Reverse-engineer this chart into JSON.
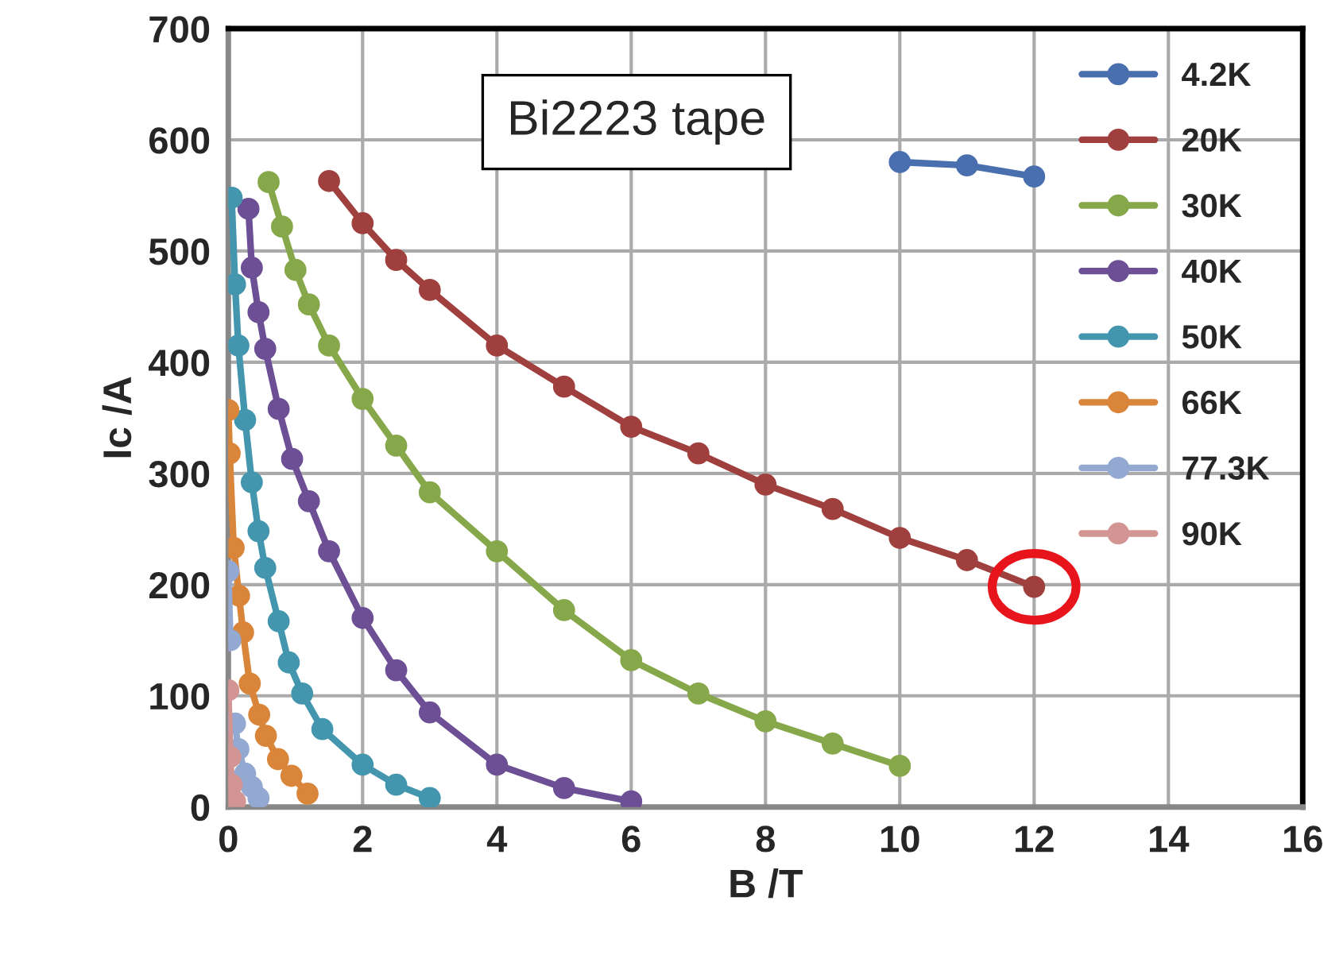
{
  "chart_data": {
    "type": "line",
    "xlabel": "B /T",
    "ylabel": "Ic /A",
    "annotations": [
      "Bi2223 tape"
    ],
    "xlim": [
      0,
      16
    ],
    "xticks": [
      0,
      2,
      4,
      6,
      8,
      10,
      12,
      14,
      16
    ],
    "ylim": [
      0,
      700
    ],
    "yticks": [
      0,
      100,
      200,
      300,
      400,
      500,
      600,
      700
    ],
    "grid": true,
    "legend": "top right",
    "marker": "circle",
    "line_style": "solid",
    "series": [
      {
        "name": "4.2K",
        "color": "#4a6fae",
        "x": [
          10,
          11,
          12
        ],
        "values": [
          580,
          577,
          567
        ]
      },
      {
        "name": "20K",
        "color": "#a0403e",
        "x": [
          1.5,
          2,
          2.5,
          3,
          4,
          5,
          6,
          7,
          8,
          9,
          10,
          11,
          12
        ],
        "values": [
          563,
          525,
          492,
          465,
          415,
          378,
          342,
          318,
          290,
          268,
          242,
          222,
          198
        ]
      },
      {
        "name": "30K",
        "color": "#86a84a",
        "x": [
          0.6,
          0.8,
          1.0,
          1.2,
          1.5,
          2,
          2.5,
          3,
          4,
          5,
          6,
          7,
          8,
          9,
          10
        ],
        "values": [
          562,
          522,
          483,
          452,
          415,
          367,
          325,
          283,
          230,
          177,
          132,
          102,
          77,
          57,
          37
        ]
      },
      {
        "name": "40K",
        "color": "#6c4f94",
        "x": [
          0.3,
          0.35,
          0.45,
          0.55,
          0.75,
          0.95,
          1.2,
          1.5,
          2,
          2.5,
          3,
          4,
          5,
          6
        ],
        "values": [
          538,
          485,
          445,
          412,
          358,
          313,
          275,
          230,
          170,
          123,
          85,
          38,
          17,
          5
        ]
      },
      {
        "name": "50K",
        "color": "#4396ad",
        "x": [
          0.05,
          0.1,
          0.15,
          0.25,
          0.35,
          0.45,
          0.55,
          0.75,
          0.9,
          1.1,
          1.4,
          2,
          2.5,
          3
        ],
        "values": [
          548,
          470,
          415,
          348,
          292,
          248,
          215,
          167,
          130,
          102,
          70,
          38,
          20,
          8
        ]
      },
      {
        "name": "66K",
        "color": "#d9853a",
        "x": [
          0,
          0.02,
          0.08,
          0.16,
          0.22,
          0.32,
          0.46,
          0.56,
          0.74,
          0.94,
          1.18
        ],
        "values": [
          357,
          318,
          233,
          190,
          157,
          111,
          83,
          64,
          43,
          28,
          12
        ]
      },
      {
        "name": "77.3K",
        "color": "#93a9d1",
        "x": [
          0,
          0.03,
          0.05,
          0.1,
          0.15,
          0.25,
          0.35,
          0.45
        ],
        "values": [
          212,
          150,
          null,
          75,
          52,
          30,
          18,
          8
        ]
      },
      {
        "name": "90K",
        "color": "#d39593",
        "x": [
          0,
          0.03,
          0.05,
          0.1
        ],
        "values": [
          105,
          45,
          20,
          5
        ]
      }
    ]
  }
}
